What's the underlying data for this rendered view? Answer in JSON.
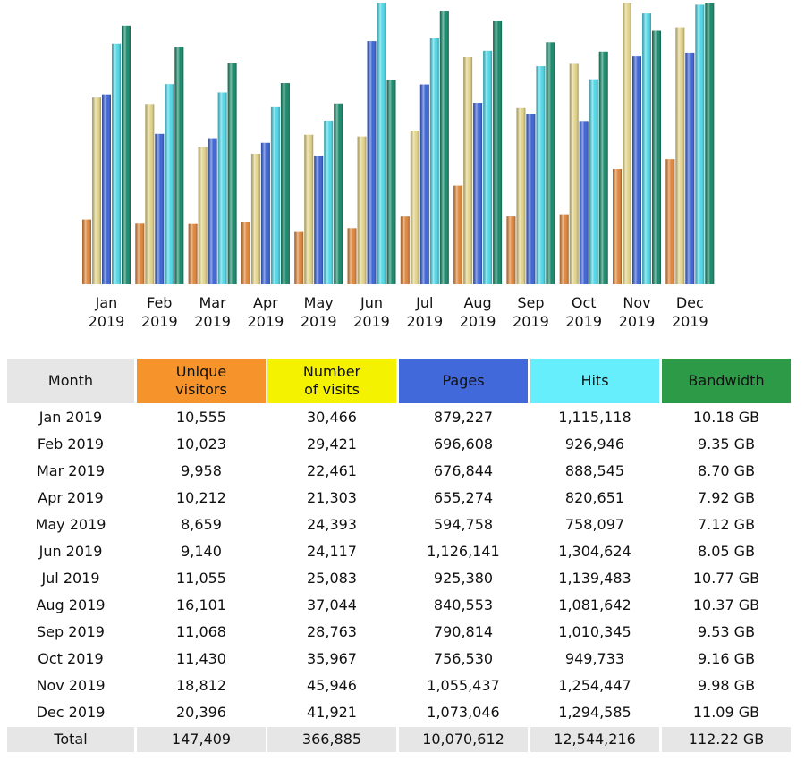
{
  "chart_data": {
    "type": "bar",
    "month_header": "Month",
    "total_label": "Total",
    "categories": [
      "Jan 2019",
      "Feb 2019",
      "Mar 2019",
      "Apr 2019",
      "May 2019",
      "Jun 2019",
      "Jul 2019",
      "Aug 2019",
      "Sep 2019",
      "Oct 2019",
      "Nov 2019",
      "Dec 2019"
    ],
    "series": [
      {
        "name": "Unique visitors",
        "color": "#e0863a",
        "header_color": "#f7932b",
        "values": [
          10555,
          10023,
          9958,
          10212,
          8659,
          9140,
          11055,
          16101,
          11068,
          11430,
          18812,
          20396
        ],
        "value_labels": [
          "10,555",
          "10,023",
          "9,958",
          "10,212",
          "8,659",
          "9,140",
          "11,055",
          "16,101",
          "11,068",
          "11,430",
          "18,812",
          "20,396"
        ],
        "total": 147409,
        "total_label": "147,409"
      },
      {
        "name": "Number of visits",
        "color": "#e3d48a",
        "header_color": "#f5f200",
        "values": [
          30466,
          29421,
          22461,
          21303,
          24393,
          24117,
          25083,
          37044,
          28763,
          35967,
          45946,
          41921
        ],
        "value_labels": [
          "30,466",
          "29,421",
          "22,461",
          "21,303",
          "24,393",
          "24,117",
          "25,083",
          "37,044",
          "28,763",
          "35,967",
          "45,946",
          "41,921"
        ],
        "total": 366885,
        "total_label": "366,885"
      },
      {
        "name": "Pages",
        "color": "#3b63d6",
        "header_color": "#4169d9",
        "values": [
          879227,
          696608,
          676844,
          655274,
          594758,
          1126141,
          925380,
          840553,
          790814,
          756530,
          1055437,
          1073046
        ],
        "value_labels": [
          "879,227",
          "696,608",
          "676,844",
          "655,274",
          "594,758",
          "1,126,141",
          "925,380",
          "840,553",
          "790,814",
          "756,530",
          "1,055,437",
          "1,073,046"
        ],
        "total": 10070612,
        "total_label": "10,070,612"
      },
      {
        "name": "Hits",
        "color": "#4fd8e8",
        "header_color": "#66eefc",
        "values": [
          1115118,
          926946,
          888545,
          820651,
          758097,
          1304624,
          1139483,
          1081642,
          1010345,
          949733,
          1254447,
          1294585
        ],
        "value_labels": [
          "1,115,118",
          "926,946",
          "888,545",
          "820,651",
          "758,097",
          "1,304,624",
          "1,139,483",
          "1,081,642",
          "1,010,345",
          "949,733",
          "1,254,447",
          "1,294,585"
        ],
        "total": 12544216,
        "total_label": "12,544,216"
      },
      {
        "name": "Bandwidth",
        "color": "#17896a",
        "header_color": "#2d9a48",
        "values": [
          10.18,
          9.35,
          8.7,
          7.92,
          7.12,
          8.05,
          10.77,
          10.37,
          9.53,
          9.16,
          9.98,
          11.09
        ],
        "value_labels": [
          "10.18 GB",
          "9.35 GB",
          "8.70 GB",
          "7.92 GB",
          "7.12 GB",
          "8.05 GB",
          "10.77 GB",
          "10.37 GB",
          "9.53 GB",
          "9.16 GB",
          "9.98 GB",
          "11.09 GB"
        ],
        "total": 112.22,
        "total_label": "112.22 GB"
      }
    ]
  }
}
